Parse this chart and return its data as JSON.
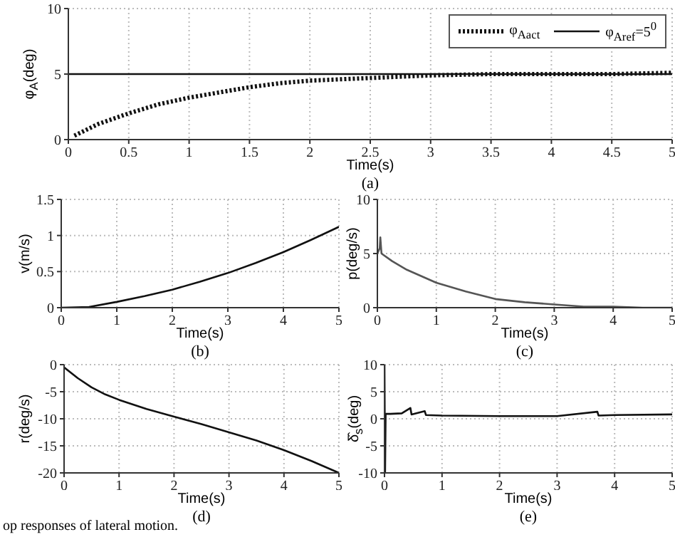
{
  "chart_data": [
    {
      "type": "line",
      "ylabel": "φ$_{A}$(deg)",
      "xlabel": "Time(s)",
      "annotations": [
        "(a)"
      ],
      "xlim": [
        0,
        5
      ],
      "xticks": [
        0,
        0.5,
        1,
        1.5,
        2,
        2.5,
        3,
        3.5,
        4,
        4.5,
        5
      ],
      "ylim": [
        0,
        10
      ],
      "yticks": [
        0,
        5,
        10
      ],
      "grid": true,
      "legend": "top right",
      "series": [
        {
          "name": "φ$_{Aact}$",
          "color": "#111111",
          "line_style": "dotted",
          "x": [
            0.05,
            0.25,
            0.5,
            0.75,
            1,
            1.25,
            1.5,
            1.75,
            2,
            2.5,
            3,
            3.5,
            4,
            4.5,
            5
          ],
          "values": [
            0.3,
            1.2,
            2.0,
            2.7,
            3.2,
            3.6,
            4.0,
            4.3,
            4.5,
            4.7,
            4.9,
            5.0,
            5.0,
            5.0,
            5.1
          ]
        },
        {
          "name": "φ$_{Aref}$=5$^{0}$",
          "color": "#111111",
          "line_style": "solid",
          "x": [
            0,
            5
          ],
          "values": [
            5,
            5
          ]
        }
      ]
    },
    {
      "type": "line",
      "ylabel": "v(m/s)",
      "xlabel": "Time(s)",
      "annotations": [
        "(b)"
      ],
      "xlim": [
        0,
        5
      ],
      "xticks": [
        0,
        1,
        2,
        3,
        4,
        5
      ],
      "ylim": [
        0,
        1.5
      ],
      "yticks": [
        0,
        0.5,
        1,
        1.5
      ],
      "grid": true,
      "series": [
        {
          "color": "#111111",
          "x": [
            0,
            0.5,
            1,
            1.5,
            2,
            2.5,
            3,
            3.5,
            4,
            4.5,
            5
          ],
          "values": [
            0,
            0.01,
            0.08,
            0.16,
            0.25,
            0.36,
            0.48,
            0.62,
            0.77,
            0.94,
            1.12
          ]
        }
      ]
    },
    {
      "type": "line",
      "ylabel": "p(deg/s)",
      "xlabel": "Time(s)",
      "annotations": [
        "(c)"
      ],
      "xlim": [
        0,
        5
      ],
      "xticks": [
        0,
        1,
        2,
        3,
        4,
        5
      ],
      "ylim": [
        0,
        10
      ],
      "yticks": [
        0,
        5,
        10
      ],
      "grid": true,
      "series": [
        {
          "color": "#555555",
          "x": [
            0,
            0.04,
            0.05,
            0.07,
            0.25,
            0.5,
            1,
            1.5,
            2,
            2.5,
            3,
            3.5,
            4,
            4.5,
            5
          ],
          "values": [
            5,
            5.5,
            6.5,
            5,
            4.3,
            3.5,
            2.3,
            1.5,
            0.8,
            0.5,
            0.3,
            0.1,
            0.1,
            0,
            0
          ]
        }
      ]
    },
    {
      "type": "line",
      "ylabel": "r(deg/s)",
      "xlabel": "Time(s)",
      "annotations": [
        "(d)",
        "op responses of lateral motion."
      ],
      "xlim": [
        0,
        5
      ],
      "xticks": [
        0,
        1,
        2,
        3,
        4,
        5
      ],
      "ylim": [
        -20,
        0
      ],
      "yticks": [
        -20,
        -15,
        -10,
        -5,
        0
      ],
      "grid": true,
      "series": [
        {
          "color": "#111111",
          "x": [
            0,
            0.25,
            0.5,
            0.75,
            1,
            1.5,
            2,
            2.5,
            3,
            3.5,
            4,
            4.5,
            5
          ],
          "values": [
            -0.5,
            -2.5,
            -4.2,
            -5.5,
            -6.5,
            -8.2,
            -9.6,
            -11,
            -12.5,
            -14,
            -15.8,
            -17.8,
            -20
          ]
        }
      ]
    },
    {
      "type": "line",
      "ylabel": "δ̂$_{s}$(deg)",
      "xlabel": "Time(s)",
      "annotations": [
        "(e)"
      ],
      "xlim": [
        0,
        5
      ],
      "xticks": [
        0,
        1,
        2,
        3,
        4,
        5
      ],
      "ylim": [
        -10,
        10
      ],
      "yticks": [
        -10,
        -5,
        0,
        5,
        10
      ],
      "grid": true,
      "series": [
        {
          "color": "#111111",
          "x": [
            0,
            0.01,
            0.02,
            0.1,
            0.3,
            0.45,
            0.47,
            0.7,
            0.72,
            1,
            2,
            3,
            3.7,
            3.72,
            4,
            5
          ],
          "values": [
            10,
            -10,
            0.9,
            0.9,
            1.0,
            2.0,
            0.8,
            1.4,
            0.7,
            0.6,
            0.5,
            0.5,
            1.3,
            0.6,
            0.7,
            0.8
          ]
        }
      ]
    }
  ]
}
